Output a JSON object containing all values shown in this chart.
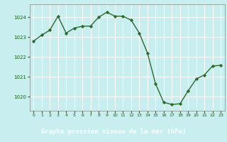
{
  "x": [
    0,
    1,
    2,
    3,
    4,
    5,
    6,
    7,
    8,
    9,
    10,
    11,
    12,
    13,
    14,
    15,
    16,
    17,
    18,
    19,
    20,
    21,
    22,
    23
  ],
  "y": [
    1022.8,
    1023.1,
    1023.35,
    1024.05,
    1023.2,
    1023.45,
    1023.55,
    1023.55,
    1024.0,
    1024.25,
    1024.05,
    1024.05,
    1023.85,
    1023.2,
    1022.2,
    1020.65,
    1019.72,
    1019.62,
    1019.65,
    1020.3,
    1020.9,
    1021.1,
    1021.55,
    1021.58
  ],
  "line_color": "#2d6a2d",
  "marker": "D",
  "marker_size": 2.2,
  "linewidth": 1.0,
  "bg_color": "#c8eef0",
  "grid_color": "#ffffff",
  "xlabel": "Graphe pression niveau de la mer (hPa)",
  "xlabel_color": "#1a5c1a",
  "tick_color": "#1a5c1a",
  "footer_bg": "#5a9a5a",
  "yticks": [
    1020,
    1021,
    1022,
    1023,
    1024
  ],
  "xticks": [
    0,
    1,
    2,
    3,
    4,
    5,
    6,
    7,
    8,
    9,
    10,
    11,
    12,
    13,
    14,
    15,
    16,
    17,
    18,
    19,
    20,
    21,
    22,
    23
  ],
  "ylim": [
    1019.3,
    1024.65
  ],
  "xlim": [
    -0.5,
    23.5
  ]
}
